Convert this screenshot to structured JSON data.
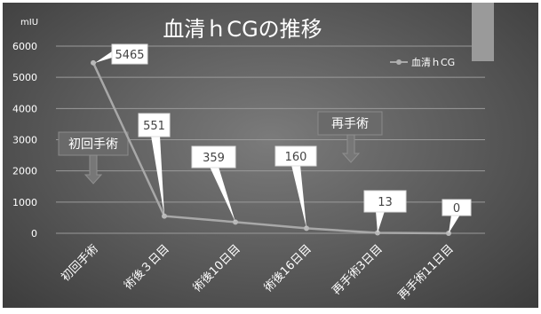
{
  "chart_data": {
    "type": "line",
    "title": "血清ｈCGの推移",
    "ylabel": "mIU",
    "xlabel": "",
    "ylim": [
      0,
      6000
    ],
    "yticks": [
      0,
      1000,
      2000,
      3000,
      4000,
      5000,
      6000
    ],
    "categories": [
      "初回手術",
      "術後３日目",
      "術後10日目",
      "術後16日目",
      "再手術3日目",
      "再手術11日目"
    ],
    "series": [
      {
        "name": "血清ｈCG",
        "values": [
          5465,
          551,
          359,
          160,
          13,
          0
        ]
      }
    ],
    "data_labels": [
      "5465",
      "551",
      "359",
      "160",
      "13",
      "0"
    ],
    "annotations": [
      {
        "text": "初回手術",
        "category_index": 0
      },
      {
        "text": "再手術",
        "category_index": 3
      }
    ],
    "legend_position": "top-right",
    "grid": true,
    "colors": {
      "line": "#a8a8a8",
      "grid": "#9a9a9a",
      "text": "#ffffff",
      "label_box": "#ffffff"
    }
  }
}
